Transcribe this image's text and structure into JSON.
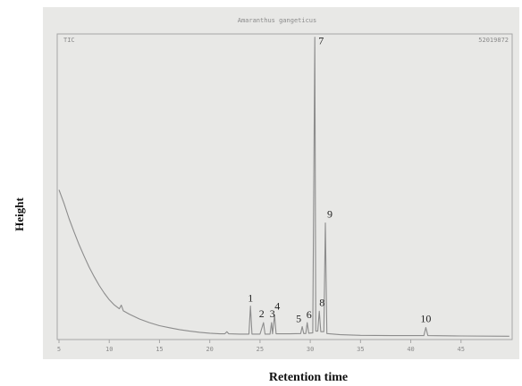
{
  "chart_data": {
    "type": "line",
    "title": "Amaranthus gangeticus",
    "trace_label": "TIC",
    "file_id": "52019872",
    "xlabel": "Retention time",
    "ylabel": "Height",
    "xlim": [
      5,
      50
    ],
    "ylim": [
      0,
      100
    ],
    "x_ticks": [
      5,
      10,
      15,
      20,
      25,
      30,
      35,
      40,
      45
    ],
    "x_tick_labels": [
      "5",
      "10",
      "15",
      "20",
      "25",
      "30",
      "35",
      "40",
      "45"
    ],
    "grid": false,
    "series": [
      {
        "values": [
          {
            "x": 5.0,
            "y": 49.0
          },
          {
            "x": 5.5,
            "y": 44.5
          },
          {
            "x": 6.0,
            "y": 39.5
          },
          {
            "x": 6.5,
            "y": 35.0
          },
          {
            "x": 7.0,
            "y": 30.8
          },
          {
            "x": 7.5,
            "y": 27.0
          },
          {
            "x": 8.0,
            "y": 23.4
          },
          {
            "x": 8.5,
            "y": 20.2
          },
          {
            "x": 9.0,
            "y": 17.3
          },
          {
            "x": 9.5,
            "y": 14.8
          },
          {
            "x": 10.0,
            "y": 12.6
          },
          {
            "x": 10.5,
            "y": 10.9
          },
          {
            "x": 11.0,
            "y": 9.6
          },
          {
            "x": 11.2,
            "y": 10.8
          },
          {
            "x": 11.4,
            "y": 8.9
          },
          {
            "x": 12.0,
            "y": 7.8
          },
          {
            "x": 13.0,
            "y": 6.2
          },
          {
            "x": 14.0,
            "y": 5.0
          },
          {
            "x": 15.0,
            "y": 4.0
          },
          {
            "x": 16.0,
            "y": 3.3
          },
          {
            "x": 17.0,
            "y": 2.7
          },
          {
            "x": 18.0,
            "y": 2.2
          },
          {
            "x": 19.0,
            "y": 1.8
          },
          {
            "x": 20.0,
            "y": 1.5
          },
          {
            "x": 21.0,
            "y": 1.3
          },
          {
            "x": 21.5,
            "y": 1.3
          },
          {
            "x": 21.7,
            "y": 2.0
          },
          {
            "x": 21.9,
            "y": 1.3
          },
          {
            "x": 23.0,
            "y": 1.2
          },
          {
            "x": 23.9,
            "y": 1.2
          },
          {
            "x": 24.05,
            "y": 10.5
          },
          {
            "x": 24.2,
            "y": 1.2
          },
          {
            "x": 25.0,
            "y": 1.2
          },
          {
            "x": 25.35,
            "y": 5.0
          },
          {
            "x": 25.5,
            "y": 1.2
          },
          {
            "x": 26.0,
            "y": 1.2
          },
          {
            "x": 26.15,
            "y": 5.0
          },
          {
            "x": 26.25,
            "y": 1.3
          },
          {
            "x": 26.45,
            "y": 7.5
          },
          {
            "x": 26.6,
            "y": 1.3
          },
          {
            "x": 28.0,
            "y": 1.3
          },
          {
            "x": 29.05,
            "y": 1.4
          },
          {
            "x": 29.2,
            "y": 3.7
          },
          {
            "x": 29.35,
            "y": 1.4
          },
          {
            "x": 29.55,
            "y": 1.4
          },
          {
            "x": 29.7,
            "y": 5.0
          },
          {
            "x": 29.85,
            "y": 1.5
          },
          {
            "x": 30.25,
            "y": 1.6
          },
          {
            "x": 30.45,
            "y": 99.5
          },
          {
            "x": 30.55,
            "y": 2.2
          },
          {
            "x": 30.75,
            "y": 2.2
          },
          {
            "x": 30.9,
            "y": 8.8
          },
          {
            "x": 31.05,
            "y": 2.0
          },
          {
            "x": 31.35,
            "y": 2.0
          },
          {
            "x": 31.5,
            "y": 38.0
          },
          {
            "x": 31.65,
            "y": 1.4
          },
          {
            "x": 33.0,
            "y": 1.0
          },
          {
            "x": 35.0,
            "y": 0.8
          },
          {
            "x": 38.0,
            "y": 0.7
          },
          {
            "x": 41.3,
            "y": 0.7
          },
          {
            "x": 41.5,
            "y": 3.4
          },
          {
            "x": 41.7,
            "y": 0.7
          },
          {
            "x": 45.0,
            "y": 0.6
          },
          {
            "x": 49.8,
            "y": 0.5
          }
        ]
      }
    ],
    "peak_labels": [
      {
        "text": "1",
        "x": 24.05,
        "y": 10.5
      },
      {
        "text": "2",
        "x": 25.35,
        "y": 5.0
      },
      {
        "text": "3",
        "x": 26.15,
        "y": 5.0
      },
      {
        "text": "4",
        "x": 26.45,
        "y": 7.5
      },
      {
        "text": "5",
        "x": 29.2,
        "y": 3.7
      },
      {
        "text": "6",
        "x": 29.7,
        "y": 5.0
      },
      {
        "text": "7",
        "x": 30.45,
        "y": 99.5
      },
      {
        "text": "8",
        "x": 30.9,
        "y": 8.8
      },
      {
        "text": "9",
        "x": 31.5,
        "y": 38.0
      },
      {
        "text": "10",
        "x": 41.5,
        "y": 3.4
      }
    ]
  },
  "colors": {
    "page_bg": "#ffffff",
    "scan_bg": "#e8e8e6",
    "frame": "#a6a6a6",
    "trace": "#8c8c8c",
    "ticks_text": "#8a8a8a",
    "labels": "#111111"
  }
}
